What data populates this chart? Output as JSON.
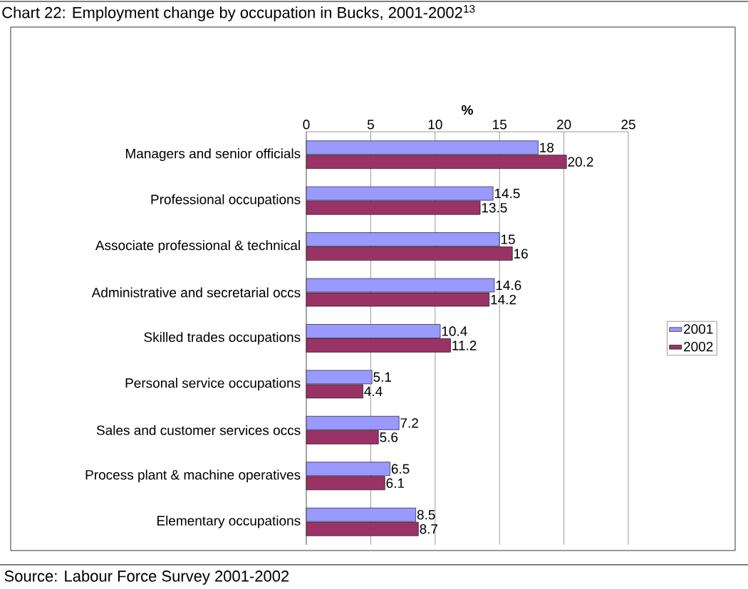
{
  "chart_data": {
    "type": "bar",
    "orientation": "horizontal",
    "title": "Chart 22: Employment change by occupation in Bucks, 2001-2002$^{13}$",
    "xlabel": "%",
    "categories": [
      "Managers and senior officials",
      "Professional occupations",
      "Associate professional & technical",
      "Administrative and secretarial occs",
      "Skilled trades occupations",
      "Personal service occupations",
      "Sales and customer services occs",
      "Process plant & machine operatives",
      "Elementary occupations"
    ],
    "series": [
      {
        "name": "2001",
        "color": "#9999ff",
        "values": [
          18,
          14.5,
          15,
          14.6,
          10.4,
          5.1,
          7.2,
          6.5,
          8.5
        ]
      },
      {
        "name": "2002",
        "color": "#993366",
        "values": [
          20.2,
          13.5,
          16,
          14.2,
          11.2,
          4.4,
          5.6,
          6.1,
          8.7
        ]
      }
    ],
    "xlim": [
      0,
      25
    ],
    "xticks": [
      0,
      5,
      10,
      15,
      20,
      25
    ],
    "grid": "x",
    "legend": "right",
    "data_labels": true,
    "annotations": [
      "Source: Labour Force Survey 2001-2002"
    ]
  }
}
